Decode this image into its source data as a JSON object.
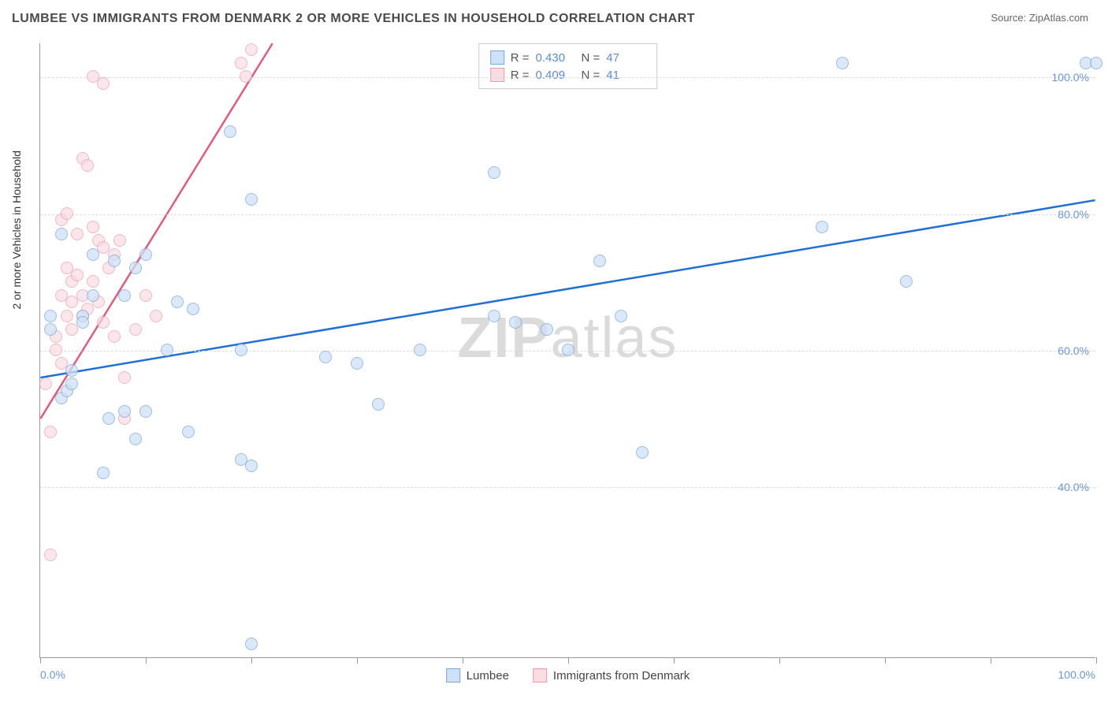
{
  "title": "LUMBEE VS IMMIGRANTS FROM DENMARK 2 OR MORE VEHICLES IN HOUSEHOLD CORRELATION CHART",
  "source": "Source: ZipAtlas.com",
  "watermark": {
    "bold": "ZIP",
    "light": "atlas"
  },
  "y_axis_title": "2 or more Vehicles in Household",
  "chart": {
    "type": "scatter",
    "xlim": [
      0,
      100
    ],
    "ylim": [
      15,
      105
    ],
    "x_tick_positions": [
      0,
      10,
      20,
      30,
      40,
      50,
      60,
      70,
      80,
      90,
      100
    ],
    "x_label_start": "0.0%",
    "x_label_end": "100.0%",
    "y_gridlines": [
      40,
      60,
      80,
      100
    ],
    "y_tick_labels": [
      "40.0%",
      "60.0%",
      "80.0%",
      "100.0%"
    ],
    "grid_color": "#dddddd",
    "axis_color": "#999999",
    "background_color": "#ffffff"
  },
  "series": {
    "lumbee": {
      "label": "Lumbee",
      "marker_fill": "#cfe1f7",
      "marker_stroke": "#7aa7d9",
      "marker_opacity": 0.75,
      "marker_size": 16,
      "line_color": "#1f6fd4",
      "line_width": 2.5,
      "trend": {
        "x1": 0,
        "y1": 56,
        "x2": 100,
        "y2": 82
      },
      "points": [
        [
          1,
          63
        ],
        [
          1,
          65
        ],
        [
          2,
          53
        ],
        [
          2.5,
          54
        ],
        [
          2,
          77
        ],
        [
          3,
          55
        ],
        [
          3,
          57
        ],
        [
          4,
          65
        ],
        [
          4,
          64
        ],
        [
          5,
          68
        ],
        [
          5,
          74
        ],
        [
          6,
          42
        ],
        [
          6.5,
          50
        ],
        [
          7,
          73
        ],
        [
          8,
          68
        ],
        [
          8,
          51
        ],
        [
          9,
          72
        ],
        [
          9,
          47
        ],
        [
          10,
          51
        ],
        [
          10,
          74
        ],
        [
          12,
          60
        ],
        [
          13,
          67
        ],
        [
          14,
          48
        ],
        [
          14.5,
          66
        ],
        [
          18,
          92
        ],
        [
          19,
          60
        ],
        [
          19,
          44
        ],
        [
          20,
          82
        ],
        [
          20,
          43
        ],
        [
          20,
          17
        ],
        [
          27,
          59
        ],
        [
          30,
          58
        ],
        [
          32,
          52
        ],
        [
          36,
          60
        ],
        [
          43,
          65
        ],
        [
          43,
          86
        ],
        [
          45,
          64
        ],
        [
          48,
          63
        ],
        [
          50,
          60
        ],
        [
          53,
          73
        ],
        [
          55,
          65
        ],
        [
          57,
          45
        ],
        [
          74,
          78
        ],
        [
          76,
          102
        ],
        [
          82,
          70
        ],
        [
          99,
          102
        ],
        [
          100,
          102
        ]
      ]
    },
    "denmark": {
      "label": "Immigrants from Denmark",
      "marker_fill": "#fadce3",
      "marker_stroke": "#e99ab0",
      "marker_opacity": 0.7,
      "marker_size": 16,
      "line_color": "#e35a7a",
      "line_width": 2.5,
      "trend": {
        "x1": 0,
        "y1": 50,
        "x2": 22,
        "y2": 105
      },
      "points": [
        [
          0.5,
          55
        ],
        [
          1,
          48
        ],
        [
          1,
          30
        ],
        [
          1.5,
          62
        ],
        [
          1.5,
          60
        ],
        [
          2,
          58
        ],
        [
          2,
          68
        ],
        [
          2,
          79
        ],
        [
          2.5,
          65
        ],
        [
          2.5,
          72
        ],
        [
          2.5,
          80
        ],
        [
          3,
          67
        ],
        [
          3,
          63
        ],
        [
          3,
          70
        ],
        [
          3.5,
          71
        ],
        [
          3.5,
          77
        ],
        [
          4,
          65
        ],
        [
          4,
          68
        ],
        [
          4,
          88
        ],
        [
          4.5,
          87
        ],
        [
          4.5,
          66
        ],
        [
          5,
          70
        ],
        [
          5,
          78
        ],
        [
          5,
          100
        ],
        [
          5.5,
          67
        ],
        [
          5.5,
          76
        ],
        [
          6,
          75
        ],
        [
          6,
          64
        ],
        [
          6,
          99
        ],
        [
          6.5,
          72
        ],
        [
          7,
          74
        ],
        [
          7,
          62
        ],
        [
          7.5,
          76
        ],
        [
          8,
          56
        ],
        [
          8,
          50
        ],
        [
          9,
          63
        ],
        [
          10,
          68
        ],
        [
          11,
          65
        ],
        [
          19,
          102
        ],
        [
          19.5,
          100
        ],
        [
          20,
          104
        ]
      ]
    }
  },
  "stats": [
    {
      "series": "lumbee",
      "r_label": "R =",
      "r": "0.430",
      "n_label": "N =",
      "n": "47"
    },
    {
      "series": "denmark",
      "r_label": "R =",
      "r": "0.409",
      "n_label": "N =",
      "n": "41"
    }
  ]
}
